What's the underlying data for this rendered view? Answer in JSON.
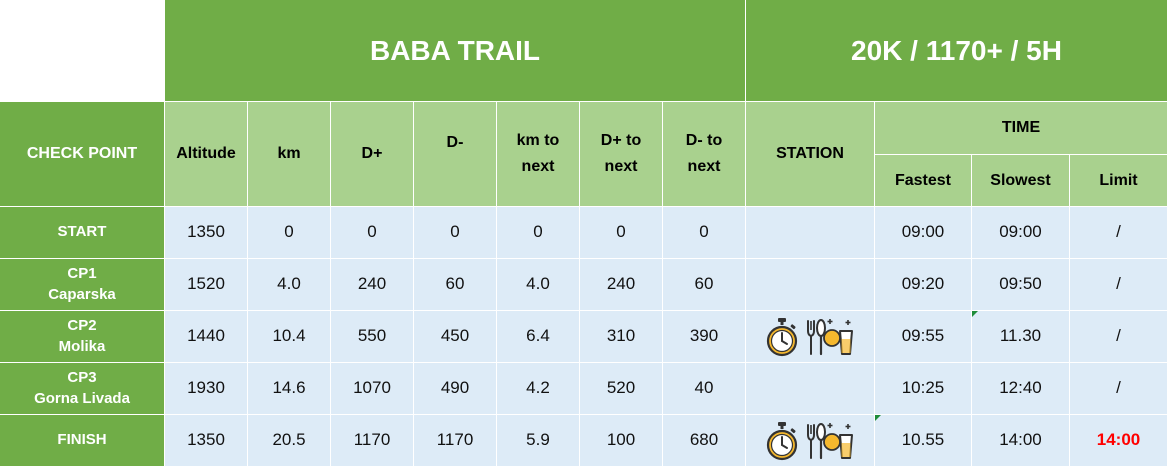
{
  "header": {
    "race_name": "BABA TRAIL",
    "race_summary": "20K / 1170+ / 5H"
  },
  "columns": {
    "check_point": "CHECK POINT",
    "altitude": "Altitude",
    "km": "km",
    "d_plus": "D+",
    "d_minus": "D-",
    "km_next_1": "km to",
    "km_next_2": "next",
    "dplus_next_1": "D+ to",
    "dplus_next_2": "next",
    "dminus_next_1": "D- to",
    "dminus_next_2": "next",
    "station": "STATION",
    "time": "TIME",
    "fastest": "Fastest",
    "slowest": "Slowest",
    "limit": "Limit"
  },
  "rows": [
    {
      "name": "START",
      "location": "",
      "altitude": "1350",
      "km": "0",
      "d_plus": "0",
      "d_minus": "0",
      "km_next": "0",
      "dplus_next": "0",
      "dminus_next": "0",
      "station_icons": [],
      "fastest": "09:00",
      "slowest": "09:00",
      "limit": "/"
    },
    {
      "name": "CP1",
      "location": "Caparska",
      "altitude": "1520",
      "km": "4.0",
      "d_plus": "240",
      "d_minus": "60",
      "km_next": "4.0",
      "dplus_next": "240",
      "dminus_next": "60",
      "station_icons": [],
      "fastest": "09:20",
      "slowest": "09:50",
      "limit": "/"
    },
    {
      "name": "CP2",
      "location": "Molika",
      "altitude": "1440",
      "km": "10.4",
      "d_plus": "550",
      "d_minus": "450",
      "km_next": "6.4",
      "dplus_next": "310",
      "dminus_next": "390",
      "station_icons": [
        "stopwatch-icon",
        "food-drink-icon"
      ],
      "fastest": "09:55",
      "slowest": "11.30",
      "limit": "/"
    },
    {
      "name": "CP3",
      "location": "Gorna Livada",
      "altitude": "1930",
      "km": "14.6",
      "d_plus": "1070",
      "d_minus": "490",
      "km_next": "4.2",
      "dplus_next": "520",
      "dminus_next": "40",
      "station_icons": [],
      "fastest": "10:25",
      "slowest": "12:40",
      "limit": "/"
    },
    {
      "name": "FINISH",
      "location": "",
      "altitude": "1350",
      "km": "20.5",
      "d_plus": "1170",
      "d_minus": "1170",
      "km_next": "5.9",
      "dplus_next": "100",
      "dminus_next": "680",
      "station_icons": [
        "stopwatch-icon",
        "food-drink-icon"
      ],
      "fastest": "10.55",
      "slowest": "14:00",
      "limit": "14:00"
    }
  ],
  "colors": {
    "header_dark": "#70ad47",
    "header_light": "#a9d18e",
    "row_fill": "#ddebf7",
    "limit_highlight": "#ff0000"
  }
}
